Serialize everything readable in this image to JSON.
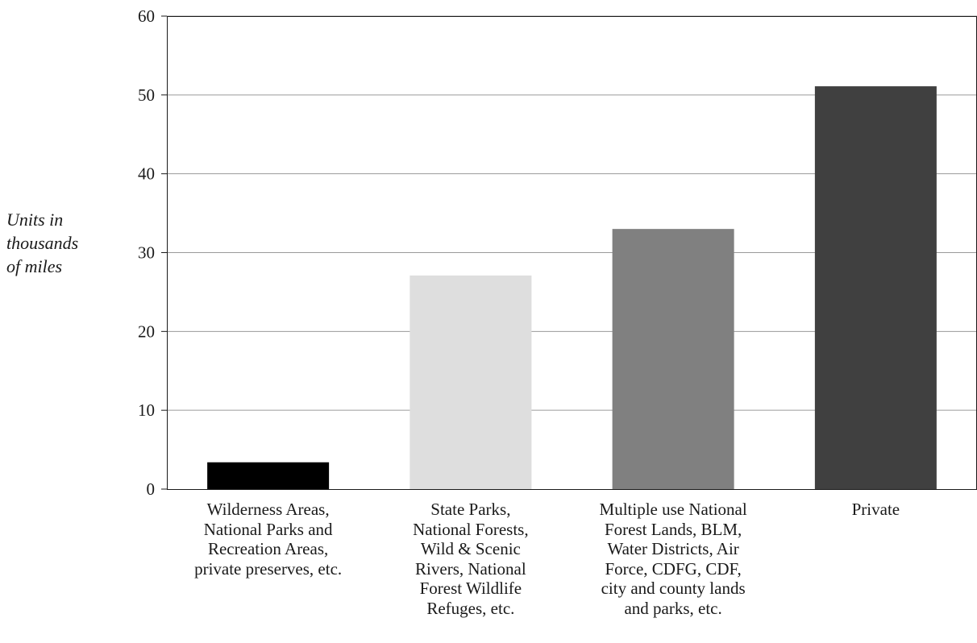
{
  "chart_data": {
    "type": "bar",
    "title": "",
    "xlabel": "",
    "ylabel_lines": [
      "Units in",
      "thousands",
      "of miles"
    ],
    "categories": [
      [
        "Wilderness Areas,",
        "National Parks and",
        "Recreation Areas,",
        "private preserves, etc."
      ],
      [
        "State Parks,",
        "National Forests,",
        "Wild & Scenic",
        "Rivers, National",
        "Forest Wildlife",
        "Refuges, etc."
      ],
      [
        "Multiple use National",
        "Forest Lands, BLM,",
        "Water Districts, Air",
        "Force, CDFG, CDF,",
        "city and county lands",
        "and parks, etc."
      ],
      [
        "Private"
      ]
    ],
    "values": [
      3.4,
      27.1,
      33.0,
      51.1
    ],
    "bar_colors": [
      "#000000",
      "#dedede",
      "#808080",
      "#404040"
    ],
    "ylim": [
      0,
      60
    ],
    "yticks": [
      0,
      10,
      20,
      30,
      40,
      50,
      60
    ],
    "grid": true,
    "legend": "none"
  }
}
